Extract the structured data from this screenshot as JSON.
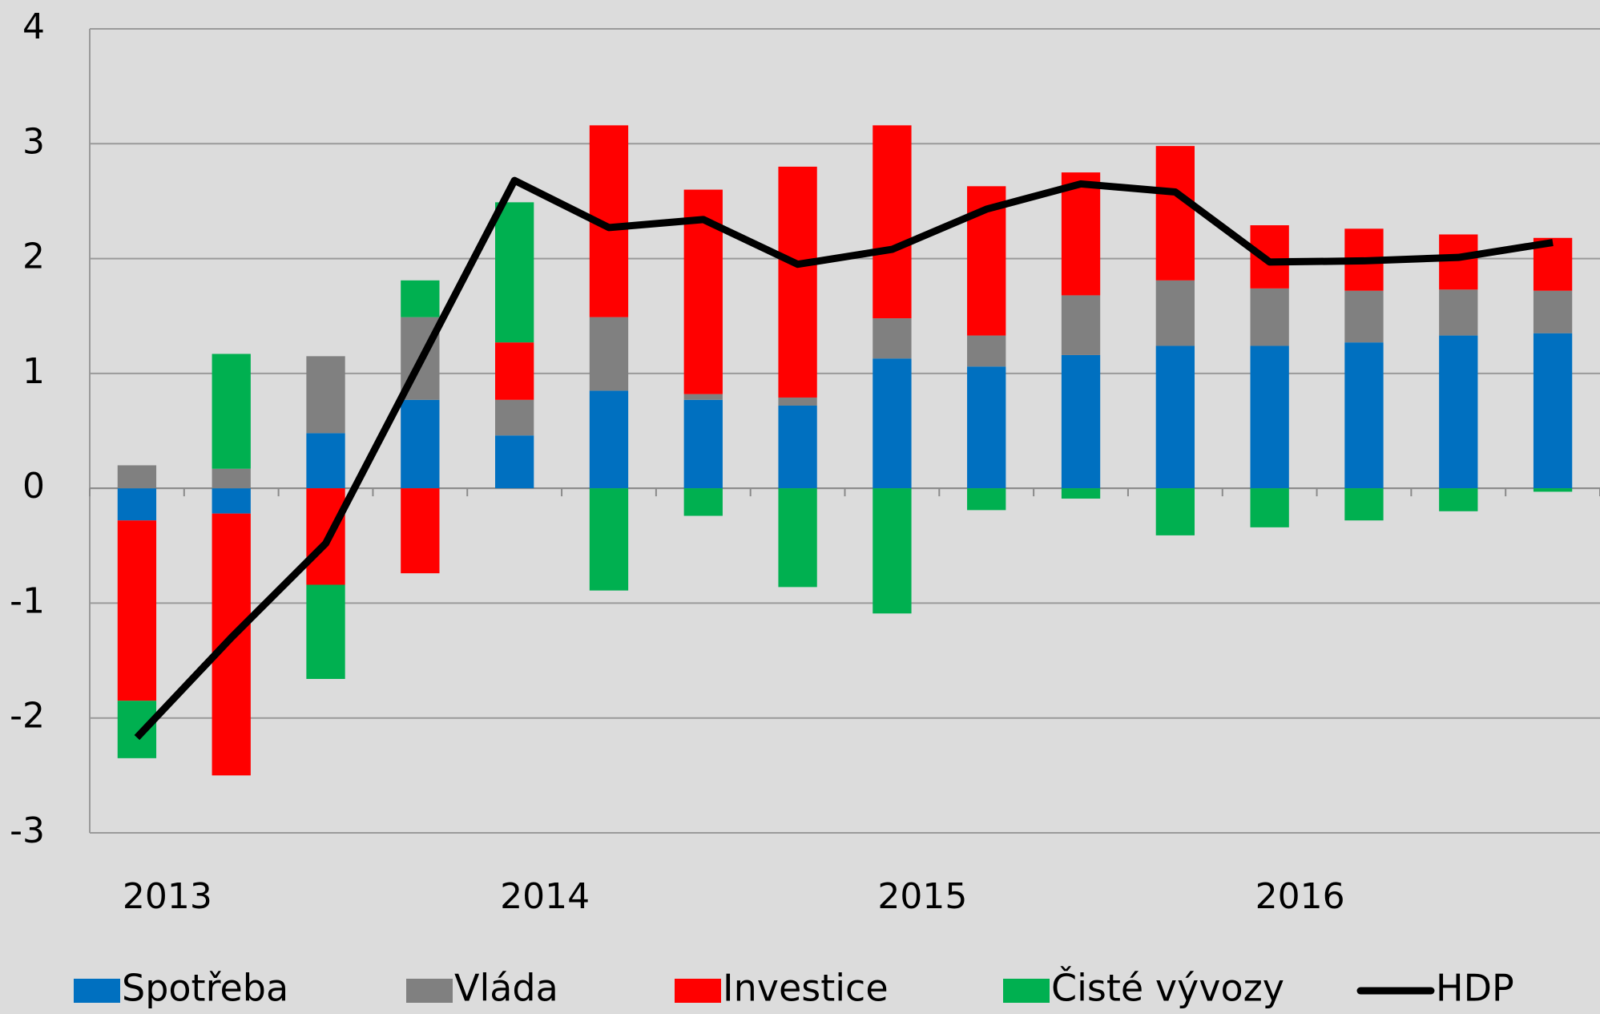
{
  "chart_data": {
    "type": "bar",
    "stacked": true,
    "categories": [
      "2013",
      null,
      null,
      null,
      "2014",
      null,
      null,
      null,
      "2015",
      null,
      null,
      null,
      "2016",
      null,
      null,
      null
    ],
    "series": [
      {
        "name": "Spotřeba",
        "color": "#0070c0",
        "values": [
          -0.28,
          -0.22,
          0.48,
          0.77,
          0.46,
          0.85,
          0.77,
          0.72,
          1.13,
          1.06,
          1.16,
          1.24,
          1.24,
          1.27,
          1.33,
          1.35
        ]
      },
      {
        "name": "Vláda",
        "color": "#808080",
        "values": [
          0.2,
          0.17,
          0.67,
          0.72,
          0.31,
          0.64,
          0.05,
          0.07,
          0.35,
          0.27,
          0.52,
          0.57,
          0.5,
          0.45,
          0.4,
          0.37
        ]
      },
      {
        "name": "Investice",
        "color": "#ff0000",
        "values": [
          -1.57,
          -2.28,
          -0.84,
          -0.74,
          0.5,
          1.67,
          1.78,
          2.01,
          1.68,
          1.3,
          1.07,
          1.17,
          0.55,
          0.54,
          0.48,
          0.46
        ]
      },
      {
        "name": "Čisté vývozy",
        "color": "#00b050",
        "values": [
          -0.5,
          1.0,
          -0.82,
          0.32,
          1.22,
          -0.89,
          -0.24,
          -0.86,
          -1.09,
          -0.19,
          -0.09,
          -0.41,
          -0.34,
          -0.28,
          -0.2,
          -0.03
        ]
      },
      {
        "name": "HDP",
        "type": "line",
        "color": "#000000",
        "values": [
          -2.17,
          -1.3,
          -0.48,
          1.1,
          2.68,
          2.27,
          2.34,
          1.95,
          2.08,
          2.43,
          2.65,
          2.58,
          1.97,
          1.98,
          2.01,
          2.14
        ]
      }
    ],
    "ylim": [
      -3,
      4
    ],
    "yticks": [
      -3,
      -2,
      -1,
      0,
      1,
      2,
      3,
      4
    ],
    "grid": true,
    "legend": "bottom"
  }
}
